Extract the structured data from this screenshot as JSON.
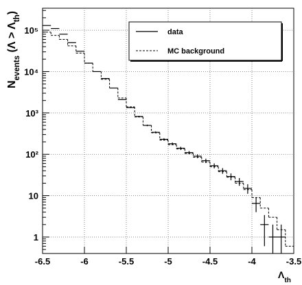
{
  "chart_data": {
    "type": "histogram",
    "xlabel": [
      {
        "text": "Λ"
      },
      {
        "text": "th",
        "sub": true
      }
    ],
    "ylabel": [
      {
        "text": "N"
      },
      {
        "text": "events",
        "sub": true
      },
      {
        "text": " (Λ > Λ"
      },
      {
        "text": "th",
        "sub": true
      },
      {
        "text": ")"
      }
    ],
    "bins": [
      -6.5,
      -6.4,
      -6.3,
      -6.2,
      -6.1,
      -6.0,
      -5.9,
      -5.8,
      -5.7,
      -5.6,
      -5.5,
      -5.4,
      -5.3,
      -5.2,
      -5.1,
      -5.0,
      -4.9,
      -4.8,
      -4.7,
      -4.6,
      -4.5,
      -4.4,
      -4.3,
      -4.2,
      -4.1,
      -4.0,
      -3.9,
      -3.8,
      -3.7,
      -3.6,
      -3.5
    ],
    "series": [
      {
        "name": "data",
        "color": "#000000",
        "style": "points",
        "values": [
          130000,
          110000,
          80000,
          50000,
          31000,
          16000,
          10000,
          6800,
          4000,
          2100,
          1350,
          820,
          500,
          340,
          230,
          180,
          140,
          110,
          90,
          70,
          53,
          40,
          29,
          22,
          15,
          6.5,
          2,
          1,
          1,
          null
        ],
        "errors": [
          360,
          330,
          280,
          220,
          176,
          126,
          100,
          82,
          63,
          46,
          37,
          29,
          22,
          18,
          15,
          13,
          12,
          10,
          9.5,
          8.4,
          7.3,
          6.3,
          5.4,
          4.7,
          3.9,
          2.5,
          1.4,
          1,
          1,
          null
        ]
      },
      {
        "name": "MC background",
        "color": "#000000",
        "style": "dashed-step",
        "values": [
          90000,
          75000,
          60000,
          42000,
          28000,
          16000,
          10000,
          6500,
          4000,
          2300,
          1400,
          800,
          500,
          330,
          220,
          170,
          135,
          105,
          85,
          65,
          50,
          38,
          28,
          20,
          14,
          9,
          5,
          3,
          1.5,
          0.6
        ]
      }
    ],
    "xlim": [
      -6.5,
      -3.5
    ],
    "xticks": [
      -6.5,
      -6,
      -5.5,
      -5,
      -4.5,
      -4,
      -3.5
    ],
    "ylim": [
      0.4,
      340000
    ],
    "yticks": [
      1,
      10,
      {
        "value": 100,
        "label": "10²"
      },
      {
        "value": 1000,
        "label": "10³"
      },
      {
        "value": 10000,
        "label": "10⁴"
      },
      {
        "value": 100000,
        "label": "10⁵"
      }
    ],
    "log_y": true,
    "grid": true,
    "legend": "top-right"
  }
}
